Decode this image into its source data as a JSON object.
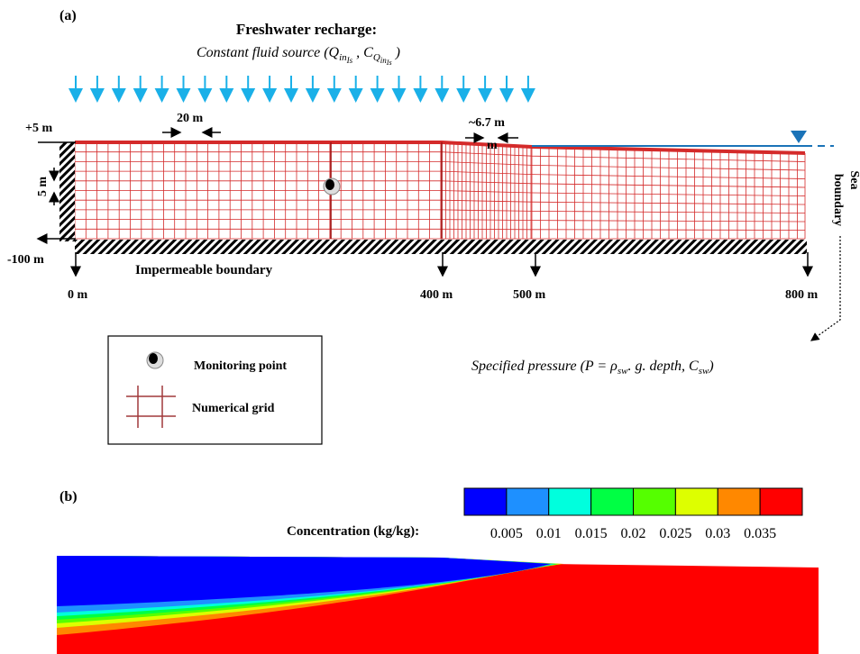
{
  "panel_a": {
    "label": "(a)",
    "recharge_title": "Freshwater recharge:",
    "recharge_source": {
      "prefix": "Constant fluid source (",
      "q": "Q",
      "q_sub": "in",
      "q_subsub": "Is",
      "sep": " , ",
      "c": "C",
      "c_sub": "Q",
      "c_subsub": "in",
      "c_subsubsub": "Is",
      "suffix": " )"
    },
    "dimensions": {
      "top": "+5 m",
      "cell_width": "20 m",
      "cell_width_fine": "~6.7 m",
      "cell_width_fine_wrap": "m",
      "cell_height": "5 m",
      "bottom": "-100 m"
    },
    "bottom_boundary": "Impermeable boundary",
    "distances": [
      "0 m",
      "400 m",
      "500 m",
      "800 m"
    ],
    "sea_boundary": [
      "Sea",
      "boundary"
    ],
    "specified_pressure": {
      "prefix": "Specified pressure (",
      "p": "P = ρ",
      "p_sub": "sw",
      "mid": ". g. depth, C",
      "c_sub": "sw",
      "suffix": ")"
    },
    "legend": {
      "monitoring_point": "Monitoring point",
      "numerical_grid": "Numerical grid"
    }
  },
  "panel_b": {
    "label": "(b)",
    "colorbar_title": "Concentration (kg/kg):",
    "colors": [
      "#0000ff",
      "#1e90ff",
      "#00ffdd",
      "#00ff44",
      "#55ff00",
      "#ddff00",
      "#ff8800",
      "#ff0000"
    ],
    "levels": [
      "0.005",
      "0.01",
      "0.015",
      "0.02",
      "0.025",
      "0.03",
      "0.035"
    ]
  }
}
